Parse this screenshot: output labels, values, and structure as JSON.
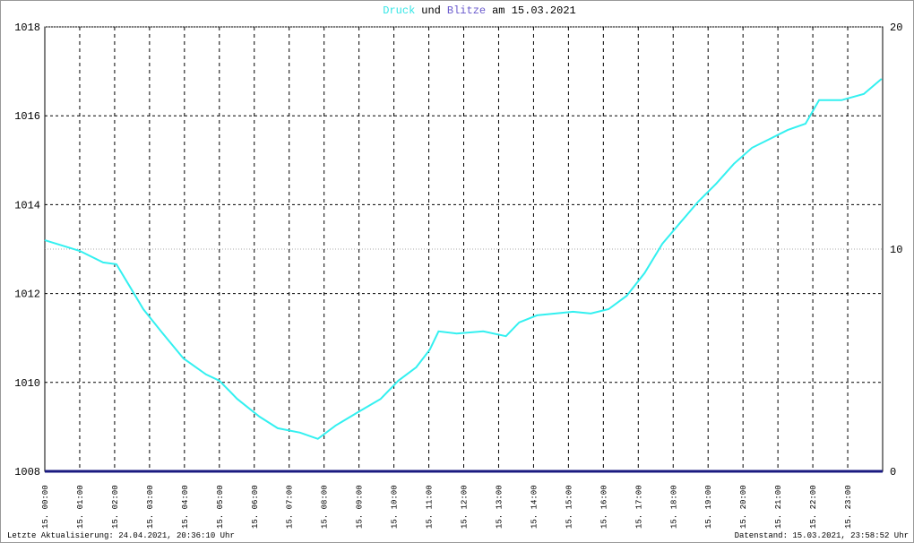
{
  "chart_data": {
    "type": "line",
    "title_parts": [
      {
        "text": "Druck",
        "color": "#33e6e6"
      },
      {
        "text": "und",
        "color": "#000000"
      },
      {
        "text": "Blitze",
        "color": "#6a5acd"
      },
      {
        "text": "am 15.03.2021",
        "color": "#000000"
      }
    ],
    "footer_left": "Letzte Aktualisierung: 24.04.2021, 20:36:10 Uhr",
    "footer_right": "Datenstand: 15.03.2021, 23:58:52 Uhr",
    "xlim": [
      0,
      24
    ],
    "xticks": [
      {
        "value": 0,
        "label": "15. 00:00"
      },
      {
        "value": 1,
        "label": "15. 01:00"
      },
      {
        "value": 2,
        "label": "15. 02:00"
      },
      {
        "value": 3,
        "label": "15. 03:00"
      },
      {
        "value": 4,
        "label": "15. 04:00"
      },
      {
        "value": 5,
        "label": "15. 05:00"
      },
      {
        "value": 6,
        "label": "15. 06:00"
      },
      {
        "value": 7,
        "label": "15. 07:00"
      },
      {
        "value": 8,
        "label": "15. 08:00"
      },
      {
        "value": 9,
        "label": "15. 09:00"
      },
      {
        "value": 10,
        "label": "15. 10:00"
      },
      {
        "value": 11,
        "label": "15. 11:00"
      },
      {
        "value": 12,
        "label": "15. 12:00"
      },
      {
        "value": 13,
        "label": "15. 13:00"
      },
      {
        "value": 14,
        "label": "15. 14:00"
      },
      {
        "value": 15,
        "label": "15. 15:00"
      },
      {
        "value": 16,
        "label": "15. 16:00"
      },
      {
        "value": 17,
        "label": "15. 17:00"
      },
      {
        "value": 18,
        "label": "15. 18:00"
      },
      {
        "value": 19,
        "label": "15. 19:00"
      },
      {
        "value": 20,
        "label": "15. 20:00"
      },
      {
        "value": 21,
        "label": "15. 21:00"
      },
      {
        "value": 22,
        "label": "15. 22:00"
      },
      {
        "value": 23,
        "label": "15. 23:00"
      }
    ],
    "ylim": [
      1008,
      1018
    ],
    "yticks": [
      1008,
      1010,
      1012,
      1014,
      1016,
      1018
    ],
    "y2lim": [
      0,
      20
    ],
    "y2ticks": [
      0,
      10,
      20
    ],
    "grid": true,
    "series": [
      {
        "name": "Druck",
        "color": "#33f0f0",
        "x": [
          0,
          1,
          1.67,
          2.05,
          2.44,
          2.82,
          3.33,
          3.97,
          4.62,
          5.0,
          5.51,
          6.15,
          6.67,
          7.31,
          7.82,
          8.33,
          8.97,
          9.62,
          10.13,
          10.64,
          11.03,
          11.28,
          11.79,
          12.56,
          13.21,
          13.59,
          14.1,
          14.62,
          15.13,
          15.64,
          16.15,
          16.67,
          17.18,
          17.69,
          18.21,
          18.72,
          19.23,
          19.74,
          20.26,
          20.77,
          21.28,
          21.79,
          22.18,
          22.82,
          23.46,
          23.97
        ],
        "values": [
          1013.2,
          1012.96,
          1012.7,
          1012.66,
          1012.15,
          1011.65,
          1011.15,
          1010.54,
          1010.18,
          1010.04,
          1009.63,
          1009.23,
          1008.97,
          1008.87,
          1008.73,
          1009.03,
          1009.33,
          1009.63,
          1010.04,
          1010.34,
          1010.74,
          1011.15,
          1011.1,
          1011.15,
          1011.04,
          1011.35,
          1011.51,
          1011.55,
          1011.59,
          1011.55,
          1011.65,
          1011.95,
          1012.46,
          1013.12,
          1013.6,
          1014.07,
          1014.47,
          1014.92,
          1015.28,
          1015.48,
          1015.68,
          1015.82,
          1016.35,
          1016.35,
          1016.49,
          1016.83
        ]
      },
      {
        "name": "Blitze",
        "color": "#1a1a80",
        "axis": "y2",
        "x": [
          0,
          24
        ],
        "values": [
          0,
          0
        ]
      }
    ]
  }
}
